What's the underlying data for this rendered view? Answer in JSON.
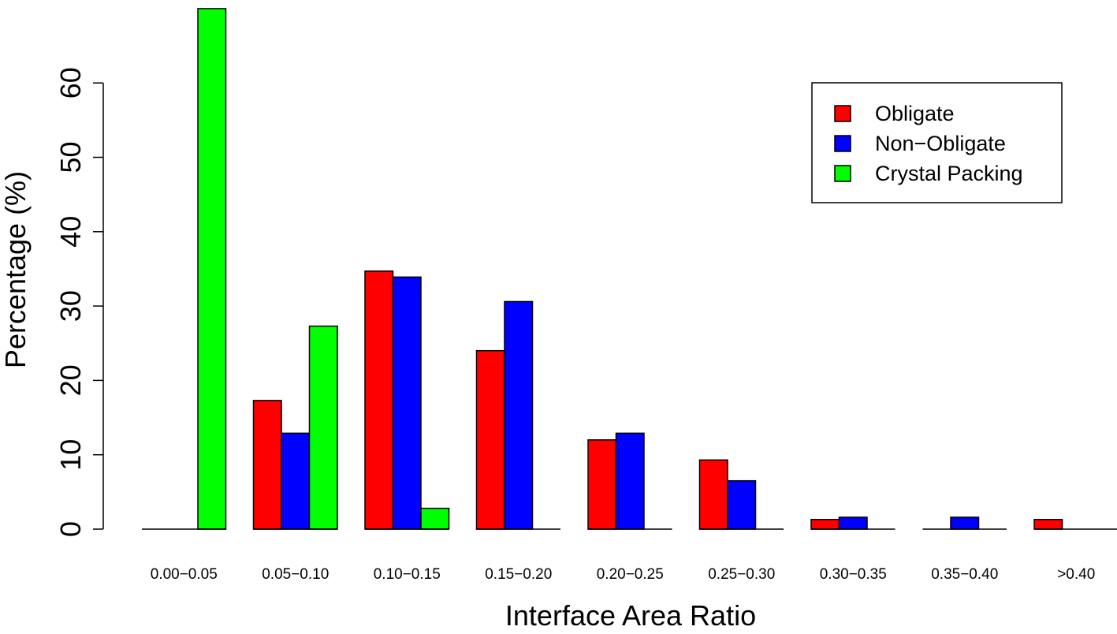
{
  "chart_data": {
    "type": "bar",
    "title": "",
    "xlabel": "Interface Area Ratio",
    "ylabel": "Percentage (%)",
    "ylim": [
      0,
      70
    ],
    "yticks": [
      0,
      10,
      20,
      30,
      40,
      50,
      60
    ],
    "grid": false,
    "legend_position": "top-right",
    "categories": [
      "0.00−0.05",
      "0.05−0.10",
      "0.10−0.15",
      "0.15−0.20",
      "0.20−0.25",
      "0.25−0.30",
      "0.30−0.35",
      "0.35−0.40",
      ">0.40"
    ],
    "series": [
      {
        "name": "Obligate",
        "color": "#ff0000",
        "values": [
          0,
          17.3,
          34.7,
          24.0,
          12.0,
          9.3,
          1.3,
          0,
          1.3
        ]
      },
      {
        "name": "Non−Obligate",
        "color": "#0000ff",
        "values": [
          0,
          12.9,
          33.9,
          30.6,
          12.9,
          6.5,
          1.6,
          1.6,
          0
        ]
      },
      {
        "name": "Crystal Packing",
        "color": "#00ff00",
        "values": [
          70.0,
          27.3,
          2.8,
          0,
          0,
          0,
          0,
          0,
          0
        ]
      }
    ]
  }
}
